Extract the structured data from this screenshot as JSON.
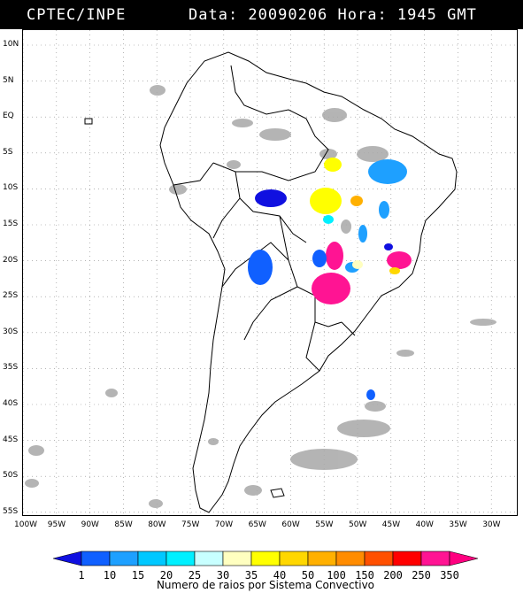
{
  "header": {
    "source": "CPTEC/INPE",
    "datetime": "Data: 20090206 Hora: 1945 GMT"
  },
  "map": {
    "lat_labels": [
      "10N",
      "5N",
      "EQ",
      "5S",
      "10S",
      "15S",
      "20S",
      "25S",
      "30S",
      "35S",
      "40S",
      "45S",
      "50S",
      "55S"
    ],
    "lon_labels": [
      "100W",
      "95W",
      "90W",
      "85W",
      "80W",
      "75W",
      "70W",
      "65W",
      "60W",
      "55W",
      "50W",
      "45W",
      "40W",
      "35W",
      "30W"
    ],
    "colors": {
      "land_outline": "#000000",
      "cloud": "#a8a8a8",
      "grid": "#888888"
    }
  },
  "legend": {
    "labels": [
      "1",
      "10",
      "15",
      "20",
      "25",
      "30",
      "35",
      "40",
      "50",
      "100",
      "150",
      "200",
      "250",
      "350"
    ],
    "colors": [
      "#1010e0",
      "#1060ff",
      "#1ea0ff",
      "#00c8ff",
      "#00f0ff",
      "#c8ffff",
      "#ffffc0",
      "#ffff00",
      "#ffd700",
      "#ffb000",
      "#ff8c00",
      "#ff5000",
      "#ff0000",
      "#ff1493",
      "#ff0080"
    ],
    "caption": "Numero de raios por Sistema Convectivo"
  }
}
